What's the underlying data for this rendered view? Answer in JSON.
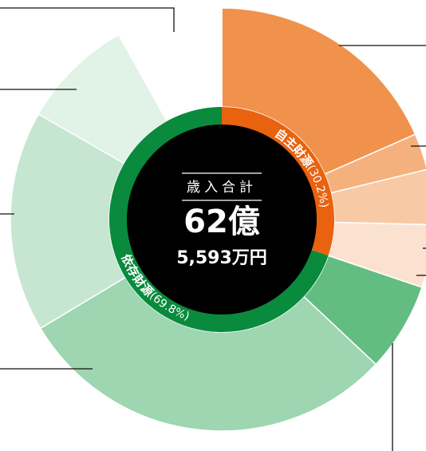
{
  "chart_data": {
    "type": "pie",
    "center": {
      "label": "歳入合計",
      "amount": "62億",
      "amount_detail": "5,593万円"
    },
    "series": [
      {
        "name": "自主財源",
        "values": [
          30.2
        ],
        "value_labels": [
          "(30.2%)"
        ],
        "color": "#e8620f",
        "segments": [
          {
            "value": 18.4,
            "color": "#f0924b"
          },
          {
            "value": 2.8,
            "color": "#f5b17d"
          },
          {
            "value": 4.2,
            "color": "#f8c9a5"
          },
          {
            "value": 4.8,
            "color": "#fbe2d0"
          }
        ]
      },
      {
        "name": "依存財源",
        "values": [
          69.8
        ],
        "value_labels": [
          "(69.8%)"
        ],
        "color": "#0a8a3d",
        "segments": [
          {
            "value": 6.8,
            "color": "#63bd82"
          },
          {
            "value": 29.4,
            "color": "#9dd6b0"
          },
          {
            "value": 16.9,
            "color": "#c6e6d2"
          },
          {
            "value": 8.6,
            "color": "#e1f2e7"
          },
          {
            "value": 8.1,
            "color": "#ffffff"
          }
        ]
      }
    ]
  }
}
